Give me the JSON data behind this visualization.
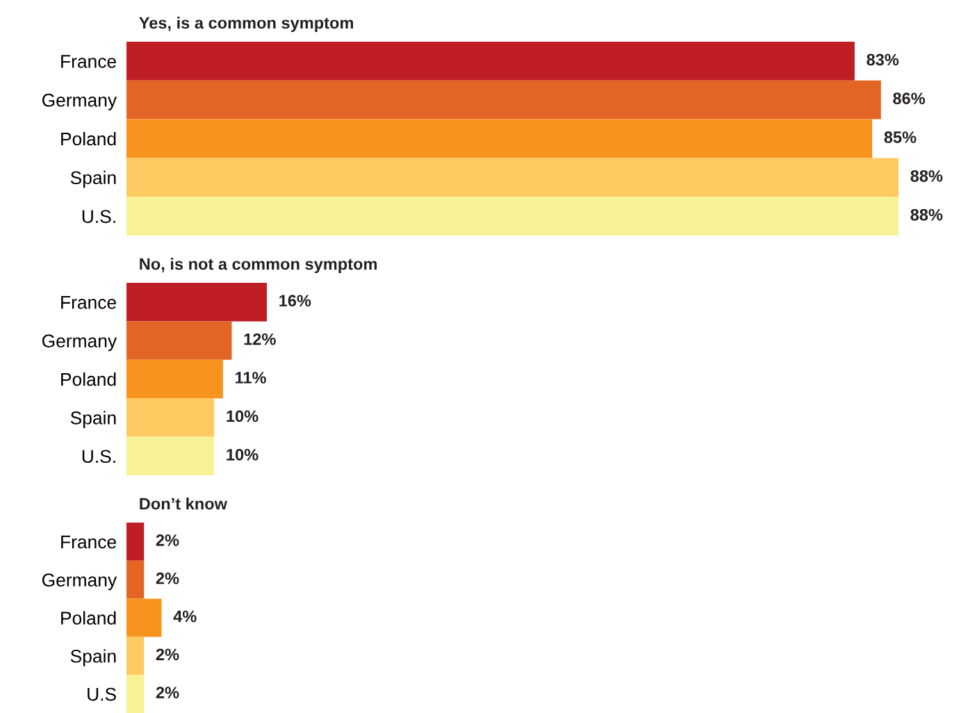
{
  "chart_data": [
    {
      "type": "bar",
      "orientation": "horizontal",
      "title": "Yes, is a common symptom",
      "categories": [
        "France",
        "Germany",
        "Poland",
        "Spain",
        "U.S."
      ],
      "values": [
        83,
        86,
        85,
        88,
        88
      ],
      "value_labels": [
        "83%",
        "86%",
        "85%",
        "88%",
        "88%"
      ],
      "colors": [
        "#be1e24",
        "#e36526",
        "#f7941d",
        "#fdc960",
        "#f7f295"
      ],
      "tick_labels": "y",
      "grid": false,
      "legend": false
    },
    {
      "type": "bar",
      "orientation": "horizontal",
      "title": "No, is not a common symptom",
      "categories": [
        "France",
        "Germany",
        "Poland",
        "Spain",
        "U.S."
      ],
      "values": [
        16,
        12,
        11,
        10,
        10
      ],
      "value_labels": [
        "16%",
        "12%",
        "11%",
        "10%",
        "10%"
      ],
      "colors": [
        "#be1e24",
        "#e36526",
        "#f7941d",
        "#fdc960",
        "#f7f295"
      ],
      "tick_labels": "y",
      "grid": false,
      "legend": false
    },
    {
      "type": "bar",
      "orientation": "horizontal",
      "title": "Don’t know",
      "categories": [
        "France",
        "Germany",
        "Poland",
        "Spain",
        "U.S"
      ],
      "values": [
        2,
        2,
        4,
        2,
        2
      ],
      "value_labels": [
        "2%",
        "2%",
        "4%",
        "2%",
        "2%"
      ],
      "colors": [
        "#be1e24",
        "#e36526",
        "#f7941d",
        "#fdc960",
        "#f7f295"
      ],
      "tick_labels": "y",
      "grid": false,
      "legend": false
    }
  ]
}
